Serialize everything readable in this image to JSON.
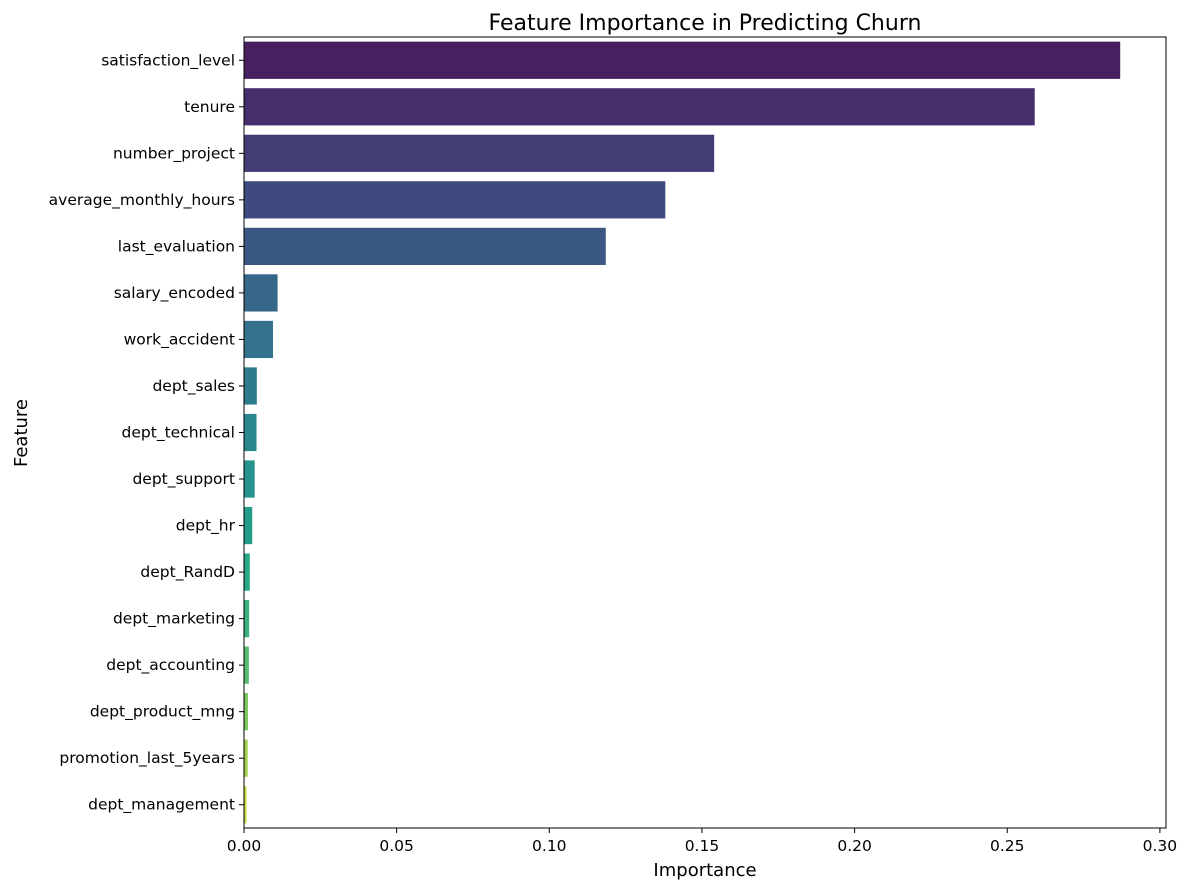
{
  "chart_data": {
    "type": "bar",
    "orientation": "horizontal",
    "title": "Feature Importance in Predicting Churn",
    "xlabel": "Importance",
    "ylabel": "Feature",
    "xlim": [
      0,
      0.302
    ],
    "xticks": [
      0.0,
      0.05,
      0.1,
      0.15,
      0.2,
      0.25,
      0.3
    ],
    "xtick_labels": [
      "0.00",
      "0.05",
      "0.10",
      "0.15",
      "0.20",
      "0.25",
      "0.30"
    ],
    "grid": false,
    "palette": "viridis",
    "categories": [
      "satisfaction_level",
      "tenure",
      "number_project",
      "average_monthly_hours",
      "last_evaluation",
      "salary_encoded",
      "work_accident",
      "dept_sales",
      "dept_technical",
      "dept_support",
      "dept_hr",
      "dept_RandD",
      "dept_marketing",
      "dept_accounting",
      "dept_product_mng",
      "promotion_last_5years",
      "dept_management"
    ],
    "values": [
      0.287,
      0.259,
      0.154,
      0.138,
      0.1185,
      0.011,
      0.0095,
      0.0042,
      0.0041,
      0.0035,
      0.0027,
      0.0019,
      0.0017,
      0.0016,
      0.0013,
      0.0012,
      0.0008
    ],
    "colors": [
      "#481f5f",
      "#472d6b",
      "#433d76",
      "#3f4a7e",
      "#3a5882",
      "#366789",
      "#33718c",
      "#2e7b8e",
      "#29878e",
      "#26928d",
      "#239d89",
      "#28a985",
      "#3bb37c",
      "#58bd71",
      "#7cc761",
      "#a3cf4e",
      "#cad93f"
    ]
  }
}
